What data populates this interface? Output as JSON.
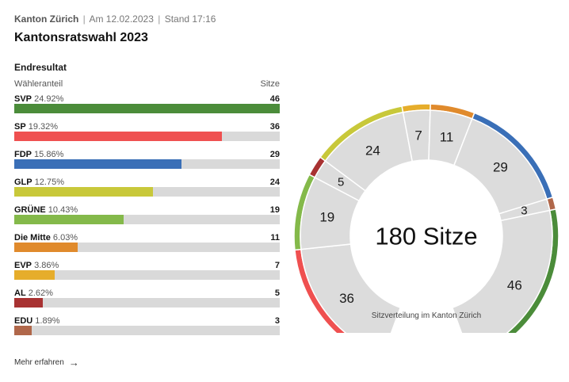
{
  "header": {
    "region": "Kanton Zürich",
    "date": "Am 12.02.2023",
    "status": "Stand 17:16",
    "separator": "|",
    "title": "Kantonsratswahl 2023"
  },
  "results": {
    "section_title": "Endresultat",
    "col_share": "Wähleranteil",
    "col_seats": "Sitze",
    "more_link": "Mehr erfahren"
  },
  "chart_data": {
    "type": "bar",
    "title": "Kantonsratswahl 2023",
    "total_seats": 180,
    "center_label": "180 Sitze",
    "caption": "Sitzverteilung im Kanton Zürich",
    "xlim": [
      0,
      46
    ],
    "parties": [
      {
        "name": "SVP",
        "share": "24.92%",
        "seats": 46,
        "color": "#4b8c3a"
      },
      {
        "name": "SP",
        "share": "19.32%",
        "seats": 36,
        "color": "#ef5050"
      },
      {
        "name": "FDP",
        "share": "15.86%",
        "seats": 29,
        "color": "#3a6fb7"
      },
      {
        "name": "GLP",
        "share": "12.75%",
        "seats": 24,
        "color": "#c8c83a"
      },
      {
        "name": "GRÜNE",
        "share": "10.43%",
        "seats": 19,
        "color": "#84b94a"
      },
      {
        "name": "Die Mitte",
        "share": "6.03%",
        "seats": 11,
        "color": "#e08a2c"
      },
      {
        "name": "EVP",
        "share": "3.86%",
        "seats": 7,
        "color": "#e6ad2b"
      },
      {
        "name": "AL",
        "share": "2.62%",
        "seats": 5,
        "color": "#a83232"
      },
      {
        "name": "EDU",
        "share": "1.89%",
        "seats": 3,
        "color": "#b0674a"
      }
    ],
    "arc_order": [
      "SP",
      "GRÜNE",
      "AL",
      "GLP",
      "EVP",
      "Die Mitte",
      "FDP",
      "EDU",
      "SVP"
    ]
  }
}
